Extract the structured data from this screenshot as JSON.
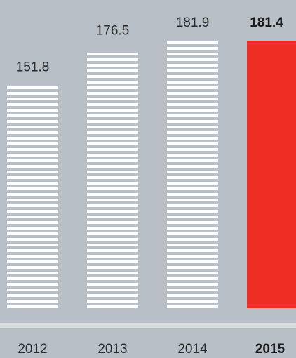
{
  "chart_data": {
    "type": "bar",
    "categories": [
      "2012",
      "2013",
      "2014",
      "2015"
    ],
    "values": [
      151.8,
      176.5,
      181.9,
      181.4
    ],
    "value_labels": [
      "151.8",
      "176.5",
      "181.9",
      "181.4"
    ],
    "highlight_index": 3,
    "title": "",
    "xlabel": "",
    "ylabel": "",
    "ylim": [
      0,
      182
    ],
    "grid": false,
    "legend": "none",
    "colors": {
      "background": "#b9bfc6",
      "bar_stripe": "#ffffff",
      "highlight_bar": "#ee2e24",
      "baseline": "#d9dcdf",
      "text": "#2a2a2a"
    }
  }
}
